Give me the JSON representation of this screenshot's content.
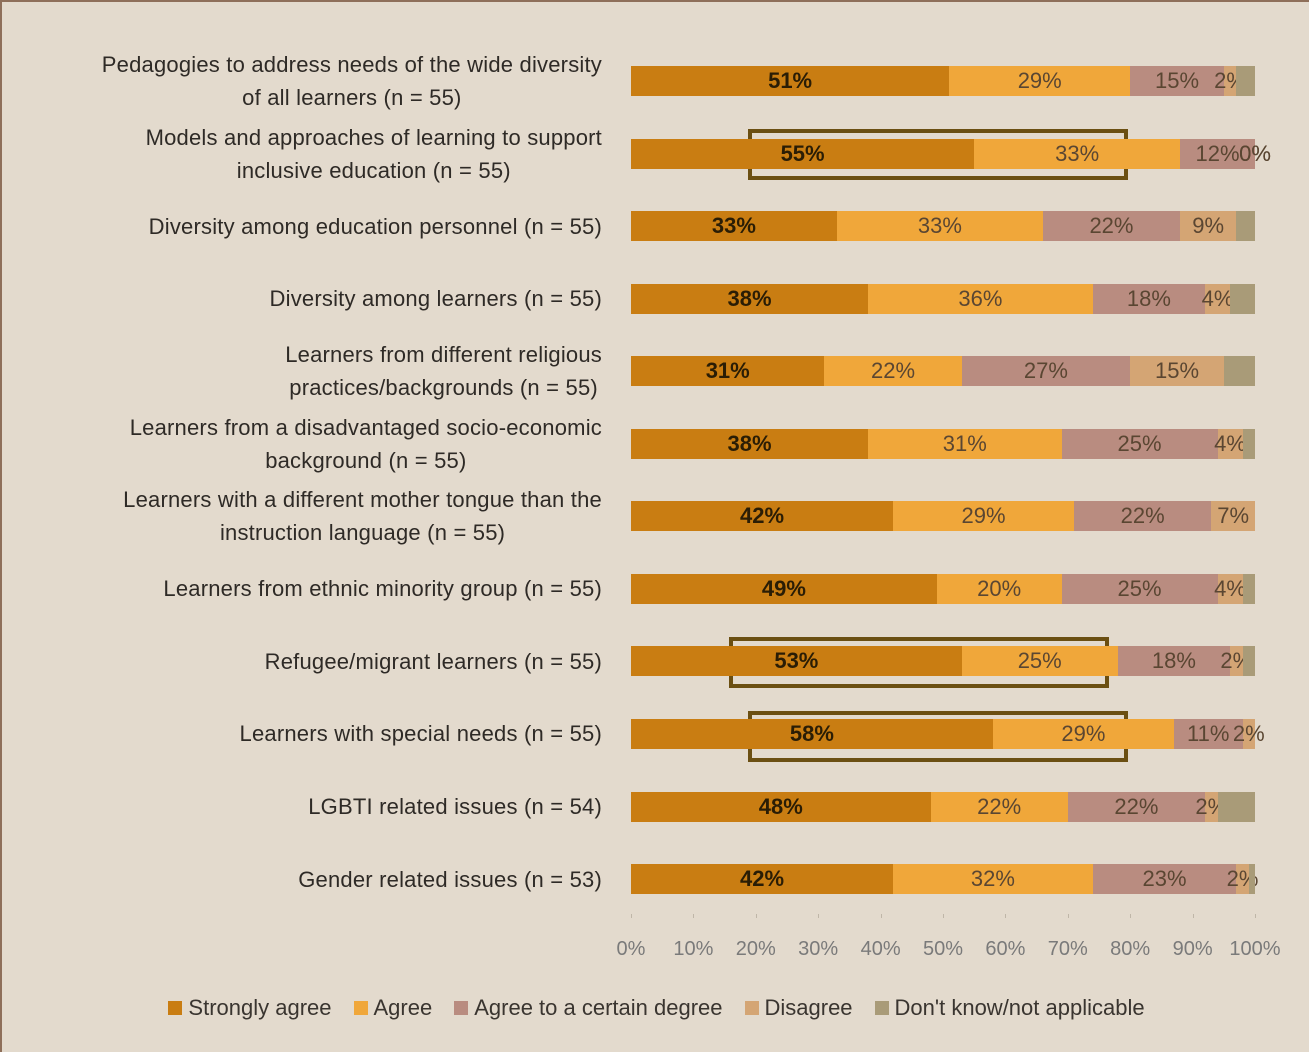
{
  "chart_data": {
    "type": "stacked_barh",
    "categories": [
      "Pedagogies to address needs of the wide diversity\nof all learners (n = 55)",
      "Models and approaches of learning  to support\ninclusive education (n = 55)",
      "Diversity among education personnel (n = 55)",
      "Diversity among learners (n = 55)",
      "Learners from different religious\npractices/backgrounds (n = 55)",
      "Learners from a disadvantaged socio-economic\nbackground (n = 55)",
      "Learners with a different mother tongue than the\ninstruction language (n = 55)",
      "Learners from ethnic minority group (n = 55)",
      "Refugee/migrant learners (n = 55)",
      "Learners with special needs (n = 55)",
      "LGBTI related issues (n = 54)",
      "Gender related issues (n = 53)"
    ],
    "series": [
      {
        "name": "Strongly agree",
        "color": "#c97d12",
        "values": [
          51,
          55,
          33,
          38,
          31,
          38,
          42,
          49,
          53,
          58,
          48,
          42
        ],
        "value_labels": [
          "51%",
          "55%",
          "33%",
          "38%",
          "31%",
          "38%",
          "42%",
          "49%",
          "53%",
          "58%",
          "48%",
          "42%"
        ]
      },
      {
        "name": "Agree",
        "color": "#f0a73a",
        "values": [
          29,
          33,
          33,
          36,
          22,
          31,
          29,
          20,
          25,
          29,
          22,
          32
        ],
        "value_labels": [
          "29%",
          "33%",
          "33%",
          "36%",
          "22%",
          "31%",
          "29%",
          "20%",
          "25%",
          "29%",
          "22%",
          "32%"
        ]
      },
      {
        "name": "Agree to a certain degree",
        "color": "#b98c80",
        "values": [
          15,
          12,
          22,
          18,
          27,
          25,
          22,
          25,
          18,
          11,
          22,
          23
        ],
        "value_labels": [
          "15%",
          "12%",
          "22%",
          "18%",
          "27%",
          "25%",
          "22%",
          "25%",
          "18%",
          "11%",
          "22%",
          "23%"
        ]
      },
      {
        "name": "Disagree",
        "color": "#d4a574",
        "values": [
          2,
          0,
          9,
          4,
          15,
          4,
          7,
          4,
          2,
          2,
          2,
          2
        ],
        "value_labels": [
          "2%",
          "0%",
          "9%",
          "4%",
          "15%",
          "4%",
          "7%",
          "4%",
          "2%",
          "2%",
          "2%",
          "2%"
        ]
      },
      {
        "name": "Don't know/not applicable",
        "color": "#a99b78",
        "values": [
          3,
          0,
          3,
          4,
          5,
          2,
          0,
          2,
          2,
          0,
          6,
          1
        ],
        "value_labels": [
          null,
          "0%",
          null,
          null,
          null,
          null,
          null,
          null,
          null,
          null,
          null,
          null
        ]
      }
    ],
    "xlim": [
      0,
      100
    ],
    "xticks": [
      {
        "value": 0,
        "label": "0%"
      },
      {
        "value": 10,
        "label": "10%"
      },
      {
        "value": 20,
        "label": "20%"
      },
      {
        "value": 30,
        "label": "30%"
      },
      {
        "value": 40,
        "label": "40%"
      },
      {
        "value": 50,
        "label": "50%"
      },
      {
        "value": 60,
        "label": "60%"
      },
      {
        "value": 70,
        "label": "70%"
      },
      {
        "value": 80,
        "label": "80%"
      },
      {
        "value": 90,
        "label": "90%"
      },
      {
        "value": 100,
        "label": "100%"
      }
    ],
    "legend": "bottom"
  }
}
